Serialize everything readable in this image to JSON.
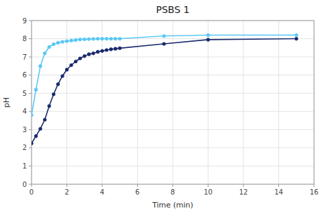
{
  "chart_data": {
    "type": "line",
    "title": "PSBS 1",
    "xlabel": "Time (min)",
    "ylabel": "pH",
    "x": [
      0,
      0.25,
      0.5,
      0.75,
      1.0,
      1.25,
      1.5,
      1.75,
      2.0,
      2.25,
      2.5,
      2.75,
      3.0,
      3.25,
      3.5,
      3.75,
      4.0,
      4.25,
      4.5,
      4.75,
      5.0,
      7.5,
      10.0,
      15.0
    ],
    "series": [
      {
        "color": "#5BC8F5",
        "marker": "circle",
        "values": [
          3.8,
          5.2,
          6.5,
          7.2,
          7.55,
          7.7,
          7.78,
          7.83,
          7.87,
          7.9,
          7.93,
          7.96,
          7.97,
          7.98,
          7.99,
          8.0,
          8.0,
          8.0,
          8.0,
          8.0,
          8.0,
          8.15,
          8.2,
          8.2
        ]
      },
      {
        "color": "#1A2A6C",
        "marker": "circle",
        "values": [
          2.25,
          2.65,
          3.05,
          3.55,
          4.3,
          4.95,
          5.5,
          5.95,
          6.3,
          6.55,
          6.75,
          6.92,
          7.05,
          7.15,
          7.2,
          7.28,
          7.33,
          7.38,
          7.42,
          7.45,
          7.48,
          7.72,
          7.95,
          8.0
        ]
      }
    ],
    "xlim": [
      0,
      16
    ],
    "ylim": [
      0,
      9
    ],
    "xticks": [
      0,
      2,
      4,
      6,
      8,
      10,
      12,
      14,
      16
    ],
    "yticks": [
      0,
      1,
      2,
      3,
      4,
      5,
      6,
      7,
      8,
      9
    ],
    "grid": true
  }
}
